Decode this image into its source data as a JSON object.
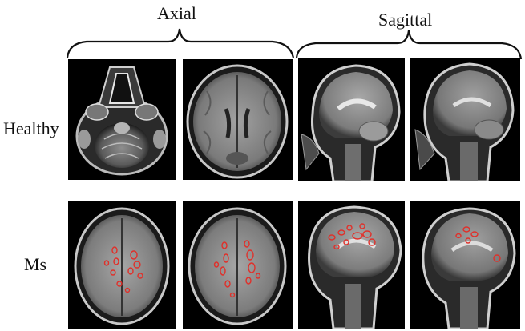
{
  "headers": {
    "axial": "Axial",
    "sagittal": "Sagittal"
  },
  "rows": {
    "healthy": "Healthy",
    "ms": "Ms"
  },
  "colors": {
    "background": "#ffffff",
    "panel": "#000000",
    "lesion": "#e0302a",
    "brain": "#9a9a9a"
  },
  "images": [
    {
      "row": "healthy",
      "view": "axial",
      "content": "skull-base slice with sinuses and cerebellum"
    },
    {
      "row": "healthy",
      "view": "axial",
      "content": "mid-level axial brain slice"
    },
    {
      "row": "healthy",
      "view": "sagittal",
      "content": "mid-sagittal head slice"
    },
    {
      "row": "healthy",
      "view": "sagittal",
      "content": "parasagittal head slice"
    },
    {
      "row": "ms",
      "view": "axial",
      "content": "axial slice with outlined lesions"
    },
    {
      "row": "ms",
      "view": "axial",
      "content": "axial slice with outlined lesions"
    },
    {
      "row": "ms",
      "view": "sagittal",
      "content": "sagittal slice with outlined lesions"
    },
    {
      "row": "ms",
      "view": "sagittal",
      "content": "sagittal slice with outlined lesions"
    }
  ]
}
